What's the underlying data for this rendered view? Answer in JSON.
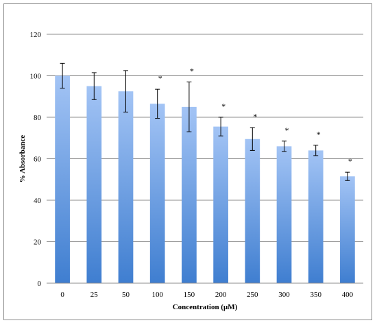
{
  "chart_data": {
    "type": "bar",
    "title": "",
    "xlabel": "Concentration (μM)",
    "ylabel": "% Absorbance",
    "ylim": [
      0,
      120
    ],
    "yticks": [
      0,
      20,
      40,
      60,
      80,
      100,
      120
    ],
    "grid": true,
    "legend": "none",
    "categories": [
      "0",
      "25",
      "50",
      "100",
      "150",
      "200",
      "250",
      "300",
      "350",
      "400"
    ],
    "values": [
      100,
      95,
      92.5,
      86.5,
      85,
      75.5,
      69.5,
      66,
      64,
      51.5
    ],
    "error_bars": [
      6,
      6.5,
      10,
      7,
      12,
      4.5,
      5.5,
      2.5,
      2.5,
      2
    ],
    "significance": [
      "",
      "",
      "",
      "*",
      "*",
      "*",
      "*",
      "*",
      "*",
      "*"
    ],
    "bar_color_top": "#a3c4f5",
    "bar_color_bottom": "#3f7ed0"
  }
}
